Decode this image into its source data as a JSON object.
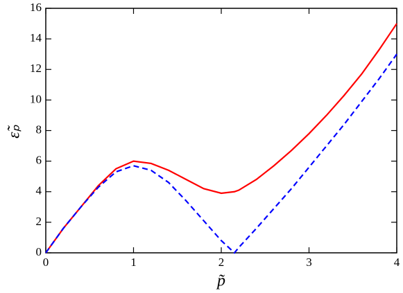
{
  "chart_data": {
    "type": "line",
    "xlabel": "p̃",
    "ylabel": "ε̃ₚ",
    "x": [
      0,
      0.2,
      0.4,
      0.6,
      0.8,
      1.0,
      1.2,
      1.4,
      1.6,
      1.8,
      2.0,
      2.15,
      2.2,
      2.4,
      2.6,
      2.8,
      3.0,
      3.2,
      3.4,
      3.6,
      3.8,
      4.0
    ],
    "series": [
      {
        "color": "#ff0000",
        "dash": false,
        "values": [
          0,
          1.6,
          3.0,
          4.4,
          5.5,
          6.0,
          5.85,
          5.4,
          4.8,
          4.2,
          3.9,
          4.0,
          4.1,
          4.8,
          5.7,
          6.7,
          7.8,
          9.0,
          10.3,
          11.7,
          13.3,
          15.0
        ]
      },
      {
        "color": "#0000ff",
        "dash": true,
        "values": [
          0,
          1.6,
          3.0,
          4.3,
          5.3,
          5.7,
          5.4,
          4.6,
          3.4,
          2.1,
          0.8,
          0,
          0.35,
          1.6,
          2.9,
          4.2,
          5.6,
          7.0,
          8.4,
          9.9,
          11.4,
          13.0
        ]
      }
    ],
    "xlim": [
      0,
      4
    ],
    "xticks": [
      0,
      1,
      2,
      3,
      4
    ],
    "ylim": [
      0,
      16
    ],
    "yticks": [
      0,
      2,
      4,
      6,
      8,
      10,
      12,
      14,
      16
    ]
  }
}
